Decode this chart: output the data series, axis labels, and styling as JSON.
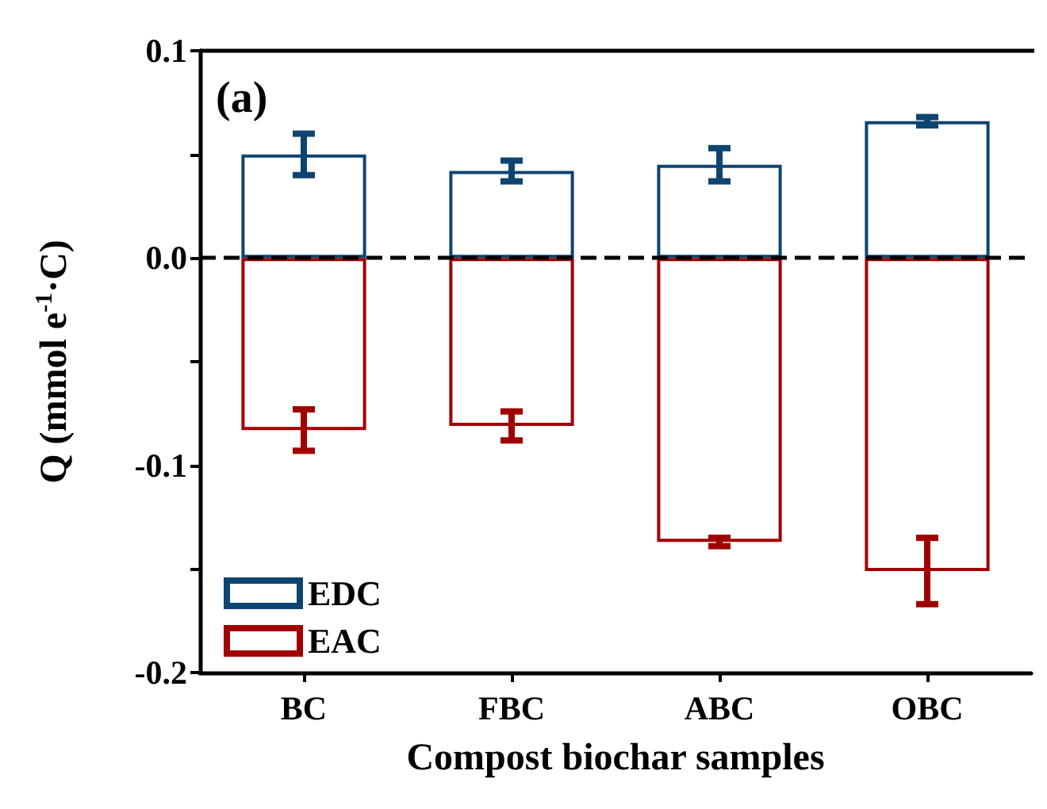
{
  "chart_data": {
    "type": "bar",
    "xlabel": "Compost biochar samples",
    "ylabel": "Q (mmol e$^{-1}$·C)",
    "annotations": [
      "(a)"
    ],
    "categories": [
      "BC",
      "FBC",
      "ABC",
      "OBC"
    ],
    "stacked": true,
    "series": [
      {
        "name": "EDC",
        "color": "#0e4470",
        "values": [
          0.05,
          0.042,
          0.045,
          0.066
        ],
        "errors": [
          0.01,
          0.005,
          0.008,
          0.002
        ]
      },
      {
        "name": "EAC",
        "color": "#a00000",
        "values": [
          -0.083,
          -0.081,
          -0.137,
          -0.151
        ],
        "errors": [
          0.01,
          0.007,
          0.002,
          0.016
        ]
      }
    ],
    "ylim": [
      -0.2,
      0.1
    ],
    "yticks": [
      {
        "value": -0.2,
        "label": "-0.2"
      },
      {
        "value": -0.15,
        "label": null
      },
      {
        "value": -0.1,
        "label": "-0.1"
      },
      {
        "value": -0.05,
        "label": null
      },
      {
        "value": 0,
        "label": "0.0"
      },
      {
        "value": 0.05,
        "label": null
      },
      {
        "value": 0.1,
        "label": "0.1"
      }
    ],
    "ref_lines": [
      {
        "axis": "y",
        "value": 0,
        "label": null,
        "color": "#000000",
        "line_style": "dashed"
      }
    ],
    "grid": false,
    "legend": "bottom left"
  }
}
